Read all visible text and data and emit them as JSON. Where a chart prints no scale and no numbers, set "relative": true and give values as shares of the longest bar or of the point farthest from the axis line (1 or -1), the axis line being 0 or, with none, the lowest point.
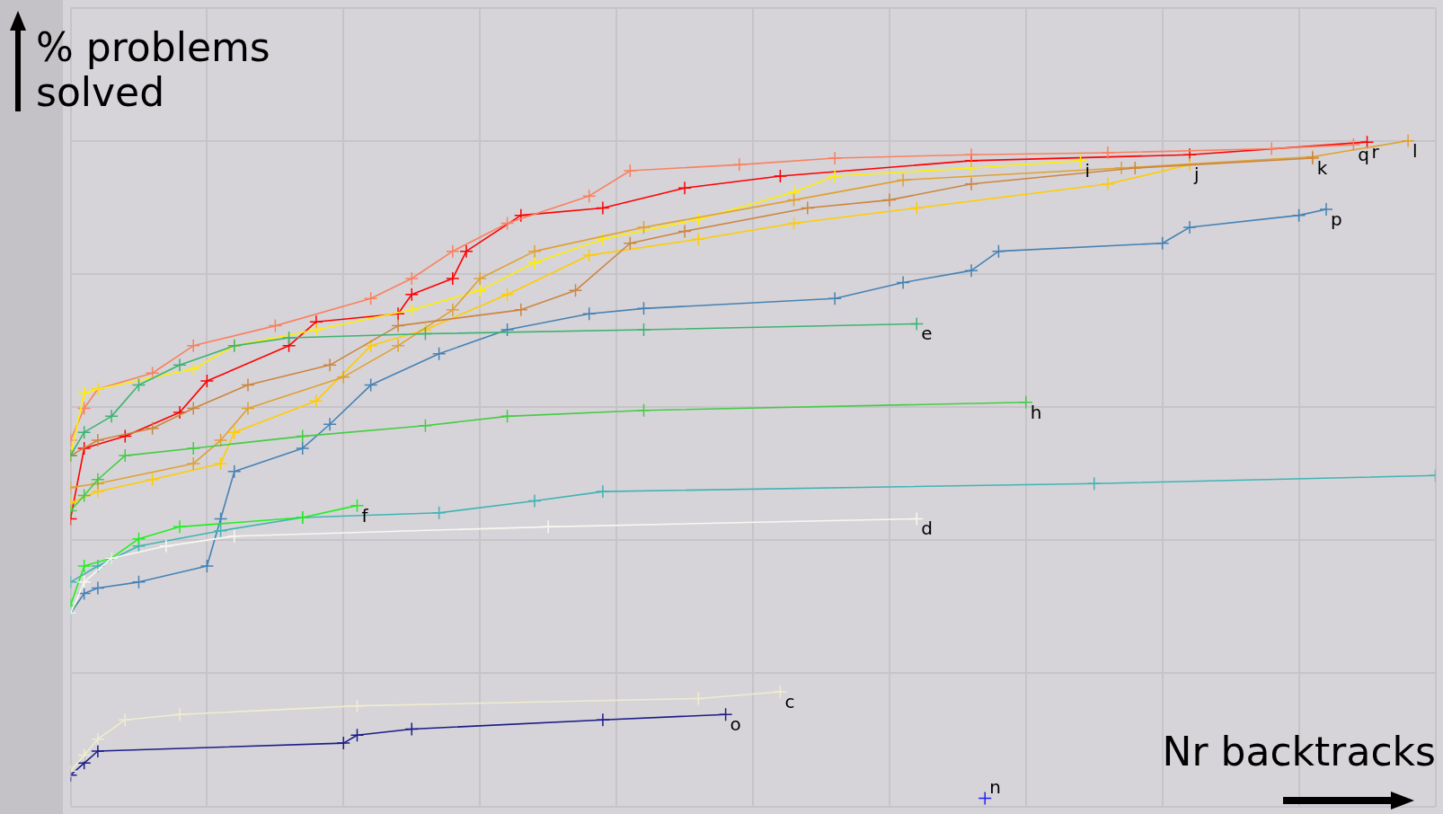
{
  "chart_data": {
    "type": "line",
    "xlabel": "Nr backtracks",
    "ylabel": "% problems solved",
    "relative": true,
    "grid": true,
    "legend": false,
    "marker": "cross",
    "line_style": "solid",
    "categories": [
      null,
      null,
      null,
      null,
      null,
      null,
      null,
      null,
      null,
      null,
      null,
      null,
      null,
      null,
      null,
      null,
      null,
      null,
      null,
      null,
      null,
      null,
      null,
      null,
      null,
      null,
      null,
      null,
      null,
      null,
      null,
      null,
      null,
      null,
      null,
      null,
      null,
      null,
      null,
      null,
      null,
      null,
      null,
      null,
      null,
      null,
      null,
      null,
      null,
      null,
      null,
      null,
      null,
      null,
      null,
      null,
      null,
      null,
      null,
      null,
      null,
      null,
      null,
      null,
      null,
      null,
      null,
      null,
      null,
      null,
      null,
      null,
      null,
      null,
      null,
      null,
      null,
      null,
      null,
      null,
      null,
      null,
      null,
      null,
      null,
      null,
      null,
      null,
      null,
      null,
      null,
      null,
      null,
      null,
      null,
      null,
      null,
      null,
      null,
      null,
      null
    ],
    "series": [
      {
        "name": "c",
        "color": "#f0ecd0",
        "values": [
          0.053,
          0.077,
          0.101,
          null,
          0.13,
          null,
          null,
          null,
          0.138,
          null,
          null,
          null,
          null,
          null,
          null,
          null,
          null,
          null,
          null,
          null,
          null,
          0.151,
          null,
          null,
          null,
          null,
          null,
          null,
          null,
          null,
          null,
          null,
          null,
          null,
          null,
          null,
          null,
          null,
          null,
          null,
          null,
          null,
          null,
          null,
          null,
          null,
          0.162,
          null,
          null,
          null,
          null,
          null,
          0.172,
          null,
          null,
          null,
          null,
          null,
          null,
          null,
          null,
          null,
          null,
          null,
          null,
          null,
          null,
          null,
          null,
          null,
          null,
          null,
          null,
          null,
          null,
          null,
          null,
          null,
          null,
          null,
          null,
          null,
          null,
          null,
          null,
          null,
          null,
          null,
          null,
          null,
          null,
          null,
          null,
          null,
          null,
          null,
          null,
          null,
          null,
          null,
          null
        ]
      },
      {
        "name": "d",
        "color": "#f8f8f0",
        "values": [
          0.29,
          0.337,
          null,
          0.373,
          null,
          null,
          null,
          0.391,
          null,
          null,
          null,
          null,
          0.406,
          null,
          null,
          null,
          null,
          null,
          null,
          null,
          null,
          null,
          null,
          null,
          null,
          null,
          null,
          null,
          null,
          null,
          null,
          null,
          null,
          null,
          null,
          0.42,
          null,
          null,
          null,
          null,
          null,
          null,
          null,
          null,
          null,
          null,
          null,
          null,
          null,
          null,
          null,
          null,
          null,
          null,
          null,
          null,
          null,
          null,
          null,
          null,
          null,
          null,
          0.432,
          null,
          null,
          null,
          null,
          null,
          null,
          null,
          null,
          null,
          null,
          null,
          null,
          null,
          null,
          null,
          null,
          null,
          null,
          null,
          null,
          null,
          null,
          null,
          null,
          null,
          null,
          null,
          null,
          null,
          null,
          null,
          null,
          null,
          null,
          null,
          null,
          null,
          null
        ]
      },
      {
        "name": "e",
        "color": "#3cb371",
        "values": [
          0.527,
          0.562,
          null,
          0.586,
          null,
          0.633,
          null,
          null,
          0.663,
          null,
          null,
          null,
          0.692,
          null,
          null,
          null,
          0.704,
          null,
          null,
          null,
          null,
          null,
          null,
          null,
          null,
          null,
          0.71,
          null,
          null,
          null,
          null,
          null,
          null,
          null,
          null,
          null,
          null,
          null,
          null,
          null,
          null,
          null,
          0.716,
          null,
          null,
          null,
          null,
          null,
          null,
          null,
          null,
          null,
          null,
          null,
          null,
          null,
          null,
          null,
          null,
          null,
          null,
          null,
          0.725,
          null,
          null,
          null,
          null,
          null,
          null,
          null,
          null,
          null,
          null,
          null,
          null,
          null,
          null,
          null,
          null,
          null,
          null,
          null,
          null,
          null,
          null,
          null,
          null,
          null,
          null,
          null,
          null,
          null,
          null,
          null,
          null,
          null,
          null,
          null,
          null,
          null,
          null
        ]
      },
      {
        "name": "f",
        "color": "#22ee22",
        "values": [
          0.302,
          0.361,
          null,
          0.373,
          null,
          0.402,
          null,
          null,
          0.42,
          null,
          null,
          null,
          null,
          null,
          null,
          null,
          null,
          0.434,
          null,
          null,
          null,
          0.452,
          null,
          null,
          null,
          null,
          null,
          null,
          null,
          null,
          null,
          null,
          null,
          null,
          null,
          null,
          null,
          null,
          null,
          null,
          null,
          null,
          null,
          null,
          null,
          null,
          null,
          null,
          null,
          null,
          null,
          null,
          null,
          null,
          null,
          null,
          null,
          null,
          null,
          null,
          null,
          null,
          null,
          null,
          null,
          null,
          null,
          null,
          null,
          null,
          null,
          null,
          null,
          null,
          null,
          null,
          null,
          null,
          null,
          null,
          null,
          null,
          null,
          null,
          null,
          null,
          null,
          null,
          null,
          null,
          null,
          null,
          null,
          null,
          null,
          null,
          null,
          null,
          null,
          null,
          null
        ]
      },
      {
        "color": "#40b4b4",
        "values": [
          0.337,
          null,
          0.361,
          null,
          null,
          0.391,
          null,
          null,
          null,
          null,
          null,
          0.414,
          null,
          null,
          null,
          null,
          null,
          0.434,
          null,
          null,
          null,
          null,
          null,
          null,
          null,
          null,
          null,
          0.441,
          null,
          null,
          null,
          null,
          null,
          null,
          0.459,
          null,
          null,
          null,
          null,
          0.473,
          null,
          null,
          null,
          null,
          null,
          null,
          null,
          null,
          null,
          null,
          null,
          null,
          null,
          null,
          null,
          null,
          null,
          null,
          null,
          null,
          null,
          null,
          null,
          null,
          null,
          null,
          null,
          null,
          null,
          null,
          null,
          null,
          null,
          null,
          null,
          0.485,
          null,
          null,
          null,
          null,
          null,
          null,
          null,
          null,
          null,
          null,
          null,
          null,
          null,
          null,
          null,
          null,
          null,
          null,
          null,
          null,
          null,
          null,
          null,
          null,
          0.497
        ]
      },
      {
        "name": "h",
        "color": "#44cc44",
        "values": [
          0.444,
          0.467,
          0.491,
          null,
          0.527,
          null,
          null,
          null,
          null,
          0.538,
          null,
          null,
          null,
          null,
          null,
          null,
          null,
          0.556,
          null,
          null,
          null,
          null,
          null,
          null,
          null,
          null,
          0.572,
          null,
          null,
          null,
          null,
          null,
          0.586,
          null,
          null,
          null,
          null,
          null,
          null,
          null,
          null,
          null,
          0.595,
          null,
          null,
          null,
          null,
          null,
          null,
          null,
          null,
          null,
          null,
          null,
          null,
          null,
          null,
          null,
          null,
          null,
          null,
          null,
          null,
          null,
          null,
          null,
          null,
          null,
          null,
          null,
          0.607,
          null,
          null,
          null,
          null,
          null,
          null,
          null,
          null,
          null,
          null,
          null,
          null,
          null,
          null,
          null,
          null,
          null,
          null,
          null,
          null,
          null,
          null,
          null,
          null,
          null,
          null,
          null,
          null,
          null,
          null
        ]
      },
      {
        "name": "p",
        "color": "#4682b4",
        "values": [
          0.29,
          0.32,
          0.328,
          null,
          null,
          0.337,
          null,
          null,
          null,
          null,
          0.361,
          0.432,
          0.503,
          null,
          null,
          null,
          null,
          0.538,
          null,
          0.574,
          null,
          null,
          0.633,
          null,
          null,
          null,
          null,
          0.68,
          null,
          null,
          null,
          null,
          0.716,
          null,
          null,
          null,
          null,
          null,
          0.74,
          null,
          null,
          null,
          0.748,
          null,
          null,
          null,
          null,
          null,
          null,
          null,
          null,
          null,
          null,
          null,
          null,
          null,
          0.763,
          null,
          null,
          null,
          null,
          0.787,
          null,
          null,
          null,
          null,
          0.805,
          null,
          0.834,
          null,
          null,
          null,
          null,
          null,
          null,
          null,
          null,
          null,
          null,
          null,
          0.846,
          null,
          0.87,
          null,
          null,
          null,
          null,
          null,
          null,
          null,
          0.888,
          null,
          0.897,
          null,
          null,
          null,
          null,
          null,
          null,
          null,
          null
        ]
      },
      {
        "name": "k",
        "color": "#cd853f",
        "values": [
          0.527,
          null,
          0.55,
          null,
          null,
          null,
          0.568,
          null,
          null,
          0.598,
          null,
          null,
          null,
          0.633,
          null,
          null,
          null,
          null,
          null,
          0.663,
          null,
          null,
          null,
          null,
          0.722,
          null,
          null,
          null,
          null,
          null,
          null,
          null,
          null,
          0.746,
          null,
          null,
          null,
          0.775,
          null,
          null,
          null,
          0.846,
          null,
          null,
          null,
          0.864,
          null,
          null,
          null,
          null,
          null,
          null,
          null,
          null,
          0.899,
          null,
          null,
          null,
          null,
          null,
          0.911,
          null,
          null,
          null,
          null,
          null,
          0.935,
          null,
          null,
          null,
          null,
          null,
          null,
          null,
          null,
          null,
          null,
          null,
          0.959,
          null,
          null,
          null,
          null,
          null,
          null,
          null,
          null,
          null,
          null,
          null,
          null,
          0.974,
          null,
          null,
          null,
          null,
          null,
          null,
          null,
          null,
          null
        ]
      },
      {
        "name": "l",
        "color": "#e0a030",
        "values": [
          0.479,
          null,
          0.485,
          null,
          null,
          null,
          null,
          null,
          null,
          0.515,
          null,
          0.55,
          null,
          0.598,
          null,
          null,
          null,
          null,
          null,
          null,
          0.645,
          null,
          null,
          null,
          0.692,
          null,
          null,
          null,
          0.746,
          null,
          0.793,
          null,
          null,
          null,
          0.834,
          null,
          null,
          null,
          null,
          null,
          null,
          null,
          0.87,
          null,
          null,
          null,
          null,
          null,
          null,
          null,
          null,
          null,
          null,
          0.911,
          null,
          null,
          null,
          null,
          null,
          null,
          null,
          0.941,
          null,
          null,
          null,
          null,
          null,
          null,
          null,
          null,
          null,
          null,
          null,
          null,
          null,
          null,
          null,
          0.959,
          null,
          null,
          null,
          null,
          null,
          null,
          null,
          null,
          null,
          null,
          null,
          null,
          null,
          0.976,
          null,
          null,
          null,
          null,
          null,
          null,
          1,
          null,
          null
        ]
      },
      {
        "name": "j",
        "color": "#ffcc00",
        "values": [
          0.456,
          null,
          0.473,
          null,
          null,
          null,
          0.491,
          null,
          null,
          null,
          null,
          0.515,
          0.562,
          null,
          null,
          null,
          null,
          null,
          0.609,
          null,
          null,
          null,
          0.692,
          null,
          null,
          null,
          0.716,
          null,
          null,
          null,
          null,
          null,
          0.769,
          null,
          null,
          null,
          null,
          null,
          0.828,
          null,
          null,
          null,
          null,
          null,
          null,
          null,
          0.852,
          null,
          null,
          null,
          null,
          null,
          null,
          0.876,
          null,
          null,
          null,
          null,
          null,
          null,
          null,
          null,
          0.899,
          null,
          null,
          null,
          null,
          null,
          null,
          null,
          null,
          null,
          null,
          null,
          null,
          null,
          0.935,
          null,
          null,
          null,
          null,
          null,
          0.964,
          null,
          null,
          null,
          null,
          null,
          null,
          null,
          null,
          null,
          null,
          null,
          null,
          null,
          null,
          null,
          null,
          null,
          null
        ]
      },
      {
        "name": "i",
        "color": "#ffee00",
        "values": [
          0.527,
          0.621,
          0.627,
          null,
          null,
          null,
          null,
          null,
          null,
          0.657,
          null,
          null,
          0.692,
          null,
          null,
          null,
          null,
          null,
          0.716,
          null,
          null,
          null,
          null,
          null,
          null,
          0.746,
          null,
          null,
          null,
          null,
          0.775,
          null,
          null,
          null,
          0.817,
          null,
          null,
          null,
          null,
          0.852,
          null,
          null,
          null,
          null,
          null,
          null,
          0.882,
          null,
          null,
          null,
          null,
          null,
          null,
          0.923,
          null,
          null,
          0.947,
          null,
          null,
          null,
          null,
          null,
          null,
          null,
          null,
          null,
          0.959,
          null,
          null,
          null,
          null,
          null,
          null,
          null,
          0.97,
          null,
          null,
          null,
          null,
          null,
          null,
          null,
          null,
          null,
          null,
          null,
          null,
          null,
          null,
          null,
          null,
          null,
          null,
          null,
          null,
          null,
          null,
          null,
          null,
          null,
          null
        ]
      },
      {
        "name": "q",
        "color": "#fa8060",
        "values": [
          0.55,
          0.598,
          0.627,
          null,
          null,
          null,
          0.651,
          null,
          null,
          0.692,
          null,
          null,
          null,
          null,
          null,
          0.722,
          null,
          null,
          null,
          null,
          null,
          null,
          0.763,
          null,
          null,
          0.793,
          null,
          null,
          0.834,
          null,
          null,
          null,
          0.876,
          null,
          null,
          null,
          null,
          null,
          0.917,
          null,
          null,
          0.955,
          null,
          null,
          null,
          null,
          null,
          null,
          null,
          0.964,
          null,
          null,
          null,
          null,
          null,
          null,
          0.974,
          null,
          null,
          null,
          null,
          null,
          null,
          null,
          null,
          null,
          0.979,
          null,
          null,
          null,
          null,
          null,
          null,
          null,
          null,
          null,
          0.982,
          null,
          null,
          null,
          null,
          null,
          null,
          null,
          null,
          null,
          null,
          null,
          0.988,
          null,
          null,
          null,
          null,
          null,
          0.994,
          null,
          null,
          null,
          null,
          null,
          null
        ]
      },
      {
        "name": "r",
        "color": "#ff0000",
        "values": [
          0.432,
          0.538,
          null,
          null,
          0.556,
          null,
          null,
          null,
          0.592,
          null,
          0.639,
          null,
          null,
          null,
          null,
          null,
          0.692,
          null,
          0.728,
          null,
          null,
          null,
          null,
          null,
          0.74,
          0.769,
          null,
          null,
          0.793,
          0.834,
          null,
          null,
          null,
          0.888,
          null,
          null,
          null,
          null,
          null,
          0.899,
          null,
          null,
          null,
          null,
          null,
          0.929,
          null,
          null,
          null,
          null,
          null,
          null,
          0.947,
          null,
          null,
          null,
          null,
          null,
          null,
          null,
          null,
          null,
          null,
          null,
          null,
          null,
          0.97,
          null,
          null,
          null,
          null,
          null,
          null,
          null,
          null,
          null,
          null,
          null,
          null,
          null,
          null,
          null,
          0.979,
          null,
          null,
          null,
          null,
          null,
          null,
          null,
          null,
          null,
          null,
          null,
          null,
          0.998,
          null,
          null,
          null,
          null,
          null
        ]
      },
      {
        "name": "o",
        "color": "#1c1c88",
        "values": [
          0.047,
          0.065,
          0.083,
          null,
          null,
          null,
          null,
          null,
          null,
          null,
          null,
          null,
          null,
          null,
          null,
          null,
          null,
          null,
          null,
          null,
          0.095,
          0.107,
          null,
          null,
          null,
          0.116,
          null,
          null,
          null,
          null,
          null,
          null,
          null,
          null,
          null,
          null,
          null,
          null,
          null,
          0.13,
          null,
          null,
          null,
          null,
          null,
          null,
          null,
          null,
          0.138,
          null,
          null,
          null,
          null,
          null,
          null,
          null,
          null,
          null,
          null,
          null,
          null,
          null,
          null,
          null,
          null,
          null,
          null,
          null,
          null,
          null,
          null,
          null,
          null,
          null,
          null,
          null,
          null,
          null,
          null,
          null,
          null,
          null,
          null,
          null,
          null,
          null,
          null,
          null,
          null,
          null,
          null,
          null,
          null,
          null,
          null,
          null,
          null,
          null,
          null,
          null,
          null
        ]
      },
      {
        "name": "n",
        "color": "#2222ee",
        "values": [
          null,
          null,
          null,
          null,
          null,
          null,
          null,
          null,
          null,
          null,
          null,
          null,
          null,
          null,
          null,
          null,
          null,
          null,
          null,
          null,
          null,
          null,
          null,
          null,
          null,
          null,
          null,
          null,
          null,
          null,
          null,
          null,
          null,
          null,
          null,
          null,
          null,
          null,
          null,
          null,
          null,
          null,
          null,
          null,
          null,
          null,
          null,
          null,
          null,
          null,
          null,
          null,
          null,
          null,
          null,
          null,
          null,
          null,
          null,
          null,
          null,
          null,
          null,
          null,
          null,
          null,
          null,
          0.012,
          null,
          null,
          null,
          null,
          null,
          null,
          null,
          null,
          null,
          null,
          null,
          null,
          null,
          null,
          null,
          null,
          null,
          null,
          null,
          null,
          null,
          null,
          null,
          null,
          null,
          null,
          null,
          null,
          null,
          null,
          null,
          null,
          null
        ]
      }
    ]
  }
}
